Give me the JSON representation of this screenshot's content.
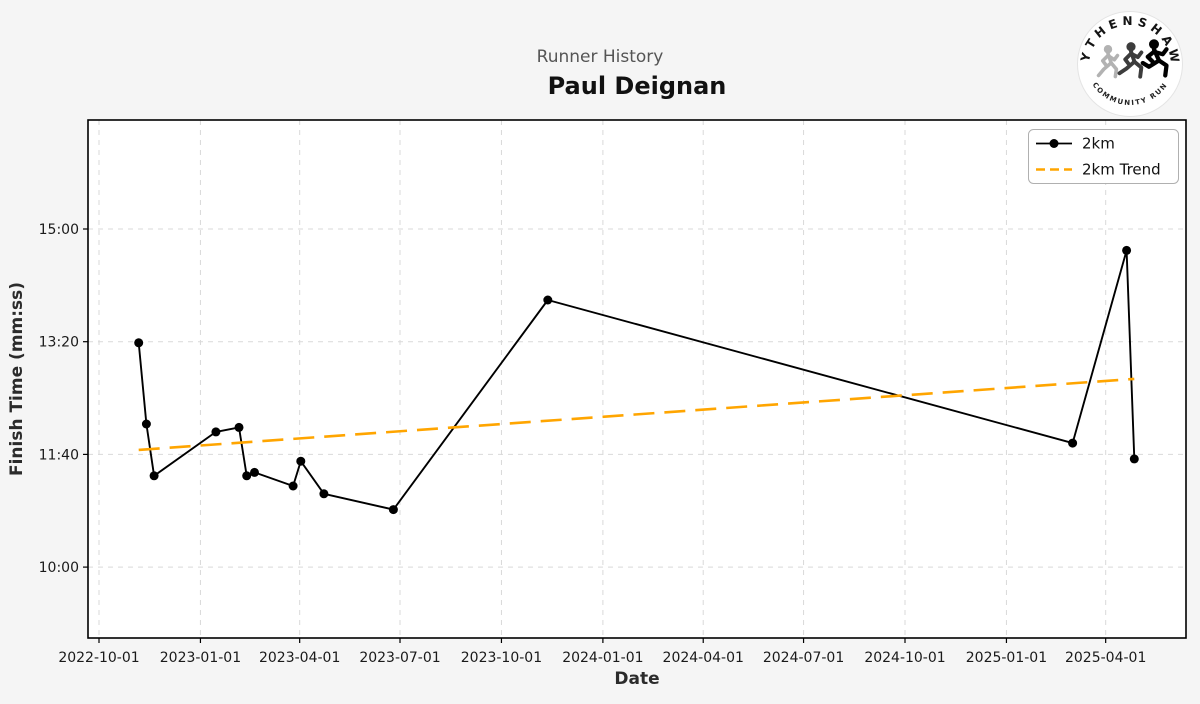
{
  "header": {
    "suptitle": "Runner History",
    "title": "Paul Deignan"
  },
  "logo": {
    "top_text": "WYTHENSHAWE",
    "bottom_text": "COMMUNITY RUN"
  },
  "legend": {
    "items": [
      {
        "label": "2km",
        "color": "#000000",
        "style": "solid-line-with-marker"
      },
      {
        "label": "2km Trend",
        "color": "#ffa500",
        "style": "dashed-line"
      }
    ]
  },
  "axes": {
    "xlabel": "Date",
    "ylabel": "Finish Time (mm:ss)"
  },
  "chart_data": {
    "type": "line",
    "title": "Runner History",
    "subtitle": "Paul Deignan",
    "xlabel": "Date",
    "ylabel": "Finish Time (mm:ss)",
    "grid": true,
    "legend_position": "upper right",
    "colors": {
      "series": "#000000",
      "trend": "#ffa500",
      "grid": "#d9d9d9"
    },
    "x_ticks": [
      "2022-10-01",
      "2023-01-01",
      "2023-04-01",
      "2023-07-01",
      "2023-10-01",
      "2024-01-01",
      "2024-04-01",
      "2024-07-01",
      "2024-10-01",
      "2025-01-01",
      "2025-04-01"
    ],
    "y_ticks": [
      {
        "label": "10:00",
        "seconds": 600
      },
      {
        "label": "11:40",
        "seconds": 700
      },
      {
        "label": "13:20",
        "seconds": 800
      },
      {
        "label": "15:00",
        "seconds": 900
      }
    ],
    "xlim_dates": [
      "2022-09-21",
      "2025-06-13"
    ],
    "ylim_seconds": [
      537,
      997
    ],
    "series": [
      {
        "name": "2km",
        "style": "line-markers",
        "color": "#000000",
        "points": [
          {
            "date": "2022-11-06",
            "time": "13:19",
            "seconds": 799
          },
          {
            "date": "2022-11-13",
            "time": "12:07",
            "seconds": 727
          },
          {
            "date": "2022-11-20",
            "time": "11:21",
            "seconds": 681
          },
          {
            "date": "2023-01-15",
            "time": "12:00",
            "seconds": 720
          },
          {
            "date": "2023-02-05",
            "time": "12:04",
            "seconds": 724
          },
          {
            "date": "2023-02-12",
            "time": "11:21",
            "seconds": 681
          },
          {
            "date": "2023-02-19",
            "time": "11:24",
            "seconds": 684
          },
          {
            "date": "2023-03-26",
            "time": "11:12",
            "seconds": 672
          },
          {
            "date": "2023-04-02",
            "time": "11:34",
            "seconds": 694
          },
          {
            "date": "2023-04-23",
            "time": "11:05",
            "seconds": 665
          },
          {
            "date": "2023-06-25",
            "time": "10:51",
            "seconds": 651
          },
          {
            "date": "2023-11-12",
            "time": "13:57",
            "seconds": 837
          },
          {
            "date": "2025-03-02",
            "time": "11:50",
            "seconds": 710
          },
          {
            "date": "2025-04-20",
            "time": "14:41",
            "seconds": 881
          },
          {
            "date": "2025-04-27",
            "time": "11:36",
            "seconds": 696
          }
        ]
      },
      {
        "name": "2km Trend",
        "style": "dashed-trend",
        "color": "#ffa500",
        "points": [
          {
            "date": "2022-11-06",
            "time": "11:44",
            "seconds": 704
          },
          {
            "date": "2025-04-27",
            "time": "12:47",
            "seconds": 767
          }
        ]
      }
    ]
  }
}
